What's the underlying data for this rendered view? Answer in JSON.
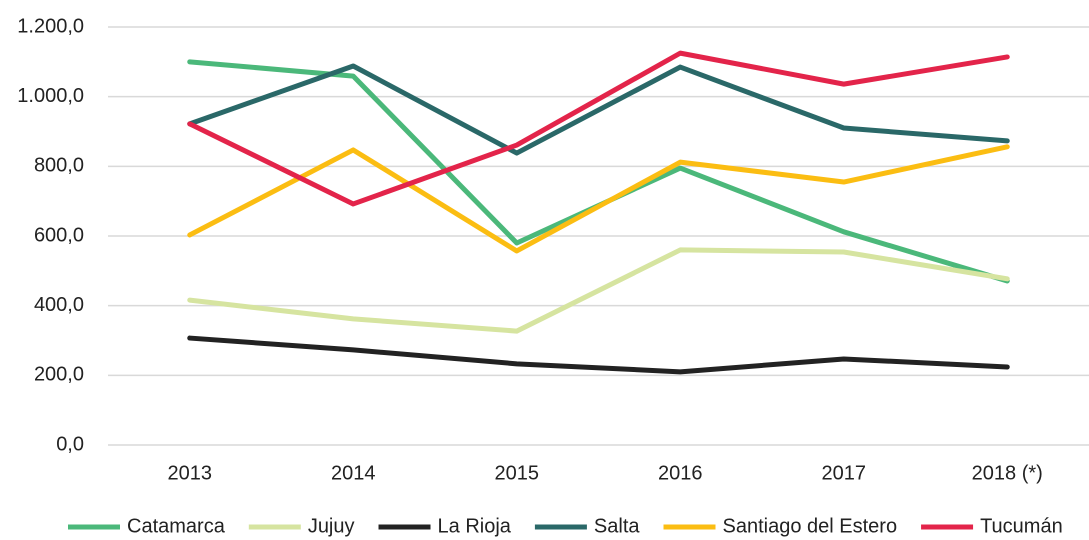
{
  "chart_data": {
    "type": "line",
    "categories": [
      "2013",
      "2014",
      "2015",
      "2016",
      "2017",
      "2018 (*)"
    ],
    "series": [
      {
        "name": "Catamarca",
        "color": "#4bb87a",
        "values": [
          1100,
          1059,
          580,
          795,
          612,
          471
        ]
      },
      {
        "name": "Jujuy",
        "color": "#d6e4a0",
        "values": [
          416,
          362,
          327,
          560,
          554,
          477
        ]
      },
      {
        "name": "La Rioja",
        "color": "#222222",
        "values": [
          307,
          273,
          233,
          210,
          247,
          224
        ]
      },
      {
        "name": "Salta",
        "color": "#2a6868",
        "values": [
          922,
          1088,
          838,
          1085,
          910,
          873
        ]
      },
      {
        "name": "Santiago del Estero",
        "color": "#fbbd12",
        "values": [
          603,
          847,
          557,
          812,
          755,
          856
        ]
      },
      {
        "name": "Tucumán",
        "color": "#e3244a",
        "values": [
          922,
          692,
          861,
          1125,
          1036,
          1114
        ]
      }
    ],
    "ylim": [
      0,
      1200
    ],
    "yticks": [
      {
        "value": 0,
        "label": "0,0"
      },
      {
        "value": 200,
        "label": "200,0"
      },
      {
        "value": 400,
        "label": "400,0"
      },
      {
        "value": 600,
        "label": "600,0"
      },
      {
        "value": 800,
        "label": "800,0"
      },
      {
        "value": 1000,
        "label": "1.000,0"
      },
      {
        "value": 1200,
        "label": "1.200,0"
      }
    ],
    "grid": true,
    "legend": "bottom"
  }
}
